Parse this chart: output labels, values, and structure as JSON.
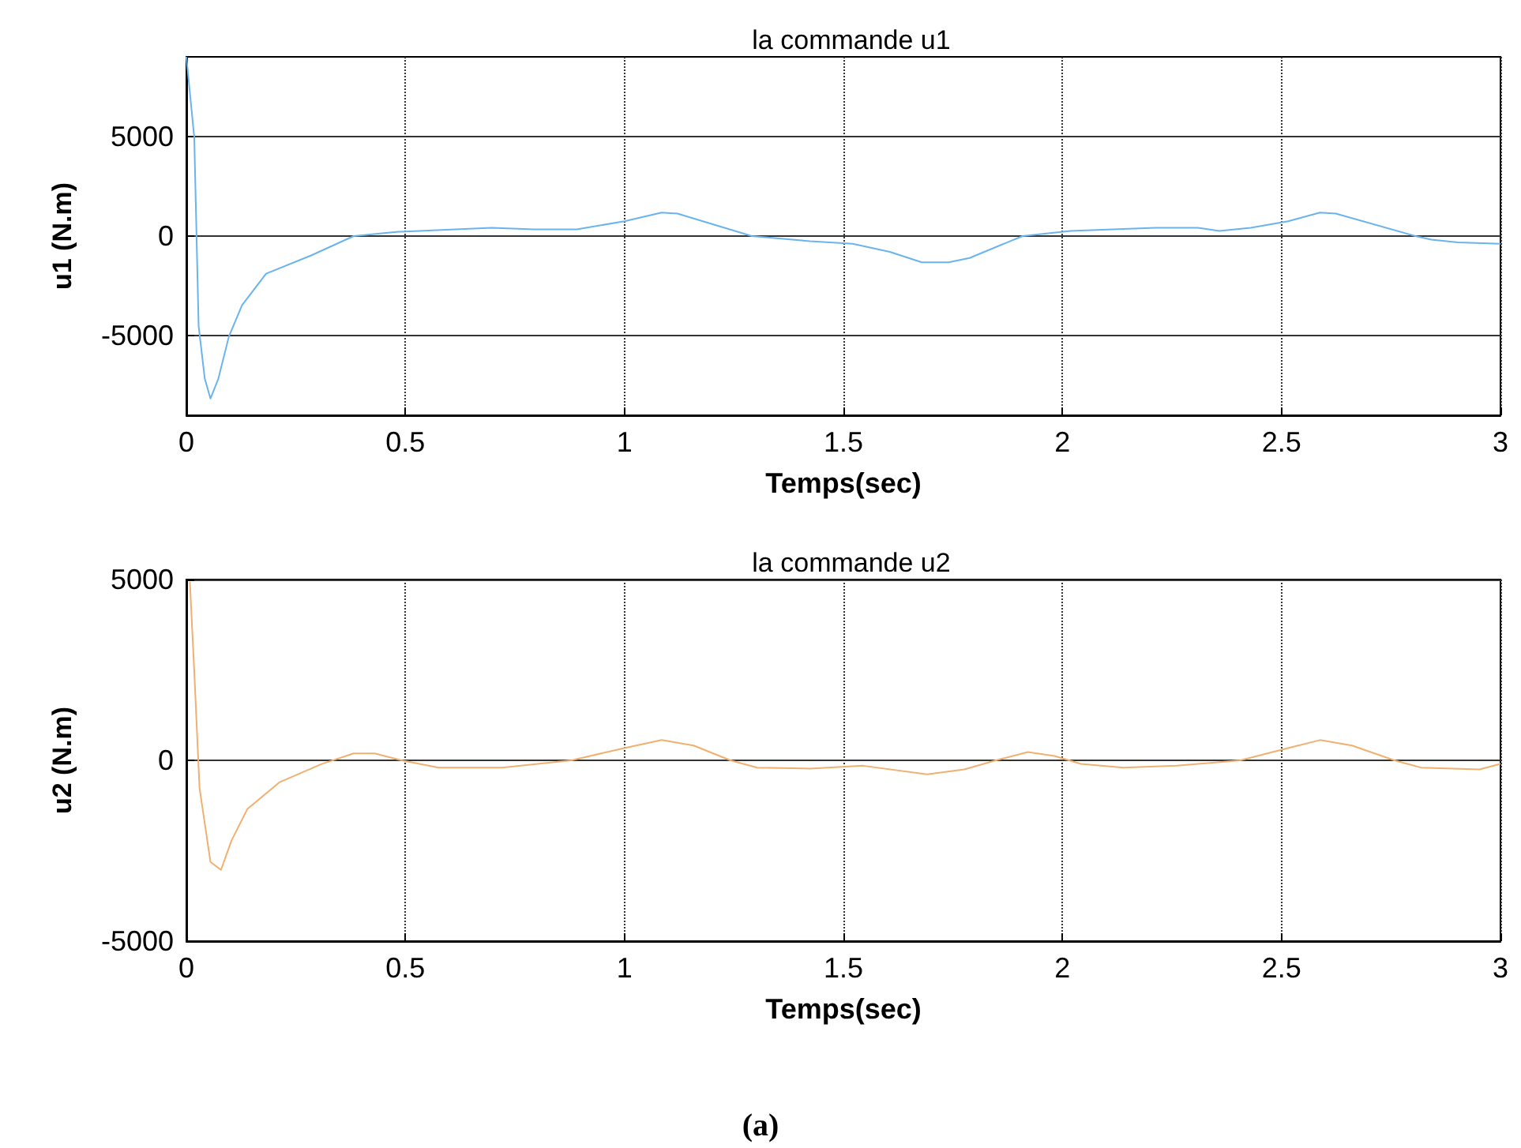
{
  "chart_data": [
    {
      "type": "line",
      "title": "la commande u1",
      "xlabel": "Temps(sec)",
      "ylabel": "u1 (N.m)",
      "xlim": [
        0,
        3
      ],
      "xticks": [
        0,
        0.5,
        1,
        1.5,
        2,
        2.5,
        3
      ],
      "ylim": [
        -9000,
        9000
      ],
      "yticks": [
        -5000,
        0,
        5000
      ],
      "grid": true,
      "series": [
        {
          "color": "#6ab4ee",
          "x": [
            0,
            0.018,
            0.028,
            0.042,
            0.055,
            0.073,
            0.097,
            0.127,
            0.182,
            0.285,
            0.382,
            0.479,
            0.697,
            0.794,
            0.891,
            1.0,
            1.085,
            1.121,
            1.291,
            1.424,
            1.521,
            1.606,
            1.679,
            1.74,
            1.788,
            1.909,
            2.018,
            2.212,
            2.309,
            2.358,
            2.43,
            2.515,
            2.588,
            2.624,
            2.806,
            2.842,
            2.903,
            3.0
          ],
          "values": [
            9000,
            4950,
            -4530,
            -7160,
            -8160,
            -7160,
            -5050,
            -3470,
            -1890,
            -970,
            0,
            210,
            420,
            340,
            340,
            740,
            1180,
            1130,
            0,
            -260,
            -390,
            -790,
            -1320,
            -1320,
            -1100,
            0,
            260,
            420,
            420,
            260,
            420,
            740,
            1180,
            1130,
            0,
            -180,
            -320,
            -390
          ]
        }
      ]
    },
    {
      "type": "line",
      "title": "la commande u2",
      "xlabel": "Temps(sec)",
      "ylabel": "u2 (N.m)",
      "xlim": [
        0,
        3
      ],
      "xticks": [
        0,
        0.5,
        1,
        1.5,
        2,
        2.5,
        3
      ],
      "ylim": [
        -5000,
        5000
      ],
      "yticks": [
        -5000,
        0,
        5000
      ],
      "grid": true,
      "annotations": [
        "(a)"
      ],
      "series": [
        {
          "color": "#f0b070",
          "x": [
            0.008,
            0.018,
            0.03,
            0.055,
            0.079,
            0.103,
            0.139,
            0.212,
            0.309,
            0.382,
            0.43,
            0.491,
            0.576,
            0.721,
            0.879,
            1.0,
            1.085,
            1.158,
            1.242,
            1.303,
            1.424,
            1.545,
            1.691,
            1.776,
            1.848,
            1.921,
            1.982,
            2.042,
            2.139,
            2.261,
            2.406,
            2.515,
            2.588,
            2.661,
            2.758,
            2.818,
            2.952,
            3.0
          ],
          "values": [
            4940,
            2460,
            -760,
            -2810,
            -3030,
            -2220,
            -1350,
            -610,
            -100,
            190,
            190,
            0,
            -200,
            -200,
            0,
            340,
            560,
            410,
            0,
            -200,
            -230,
            -150,
            -390,
            -250,
            0,
            230,
            120,
            -100,
            -200,
            -150,
            0,
            340,
            560,
            410,
            0,
            -200,
            -250,
            -100
          ]
        }
      ]
    }
  ]
}
